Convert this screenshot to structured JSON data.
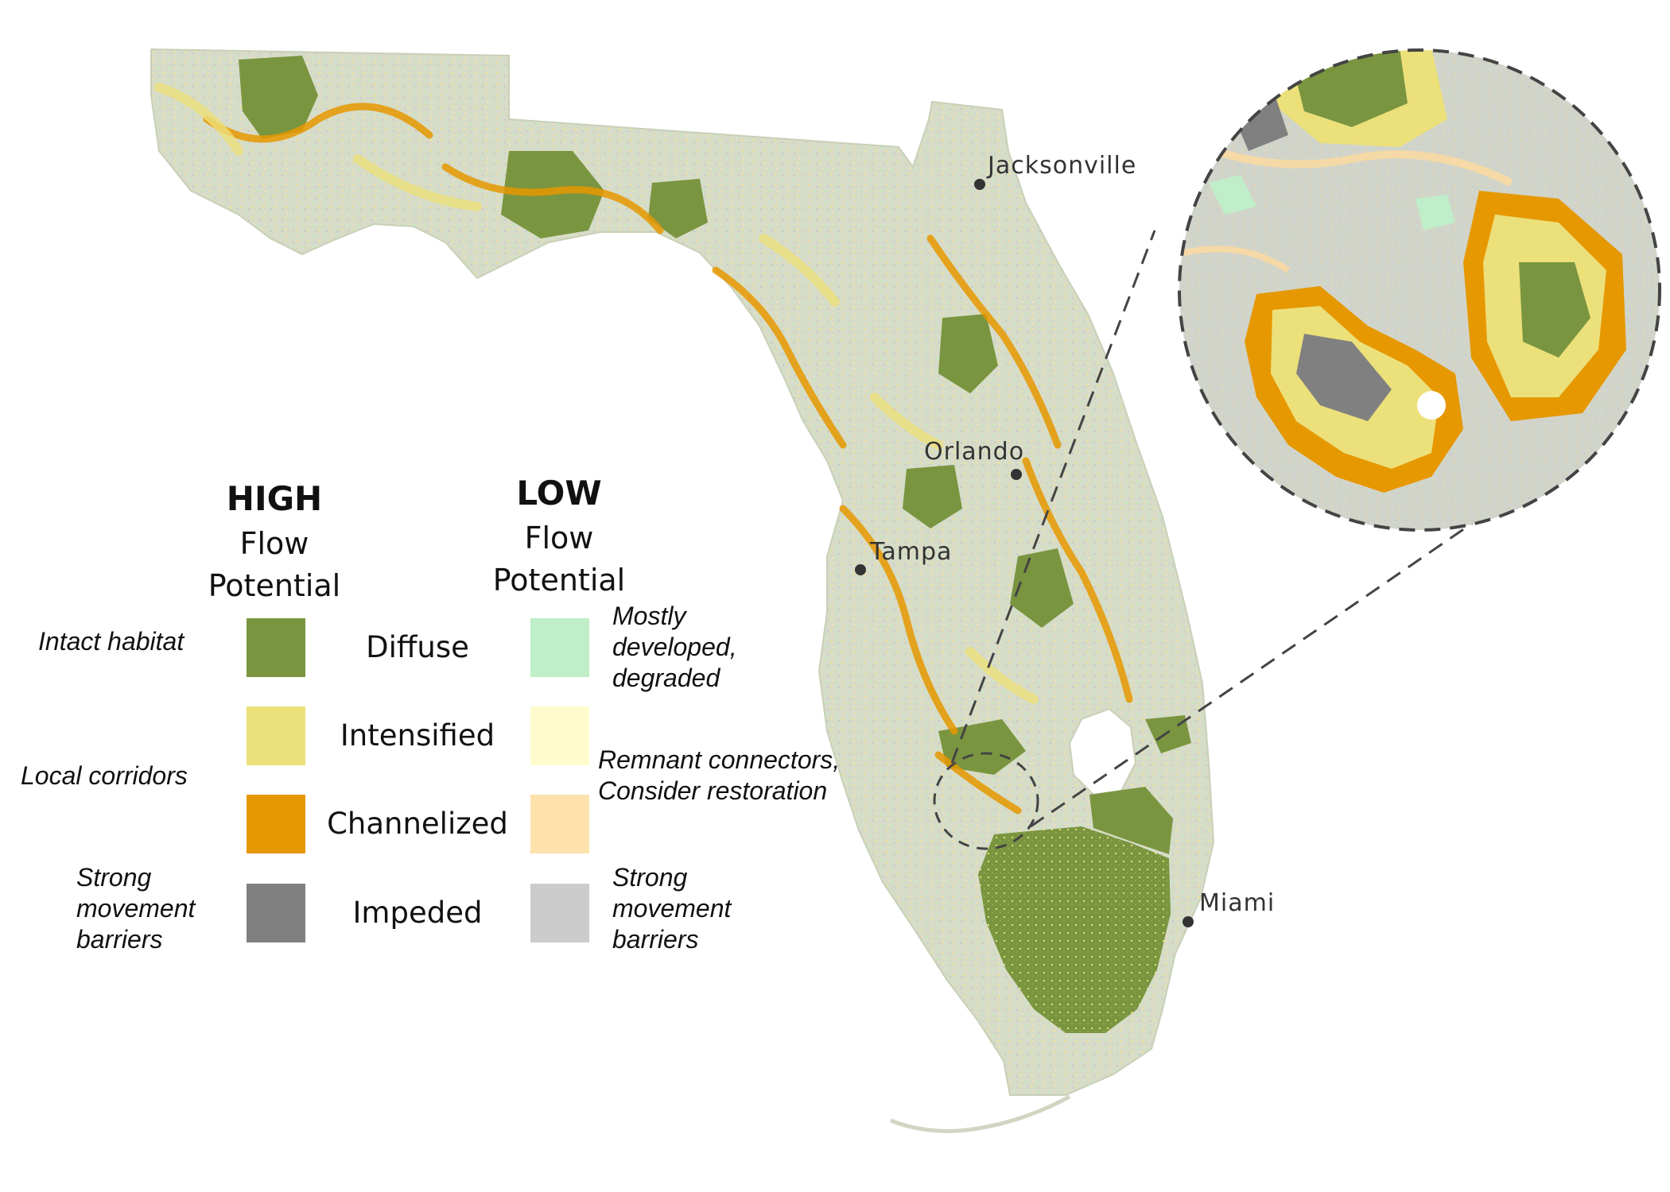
{
  "legend": {
    "high_heading": "HIGH",
    "high_sub1": "Flow",
    "high_sub2": "Potential",
    "low_heading": "LOW",
    "low_sub1": "Flow",
    "low_sub2": "Potential",
    "rows": [
      {
        "category": "Diffuse",
        "high_desc": [
          "Intact habitat"
        ],
        "low_desc": [
          "Mostly",
          "developed,",
          "degraded"
        ],
        "high_color": "#7a9540",
        "low_color": "#bfeec8"
      },
      {
        "category": "Intensified",
        "high_desc": [],
        "low_desc": [],
        "high_color": "#ece07a",
        "low_color": "#fefccc"
      },
      {
        "category": "Channelized",
        "high_desc": [],
        "low_desc": [],
        "high_color": "#e69800",
        "low_color": "#fde2ad"
      },
      {
        "category": "Impeded",
        "high_desc": [
          "Strong",
          "movement",
          "barriers"
        ],
        "low_desc": [
          "Strong",
          "movement",
          "barriers"
        ],
        "high_color": "#808080",
        "low_color": "#cccccc"
      }
    ],
    "local_corridors": "Local corridors",
    "remnant_line1": "Remnant connectors,",
    "remnant_line2": "Consider restoration"
  },
  "cities": [
    {
      "name": "Jacksonville"
    },
    {
      "name": "Orlando"
    },
    {
      "name": "Tampa"
    },
    {
      "name": "Miami"
    }
  ],
  "colors": {
    "diffuse_high": "#7a9540",
    "intensified_high": "#ece07a",
    "channelized_high": "#e69800",
    "impeded_high": "#808080",
    "diffuse_low": "#bfeec8",
    "intensified_low": "#fefccc",
    "channelized_low": "#fde2ad",
    "impeded_low": "#cccccc",
    "base_land": "#d4dcc4"
  }
}
